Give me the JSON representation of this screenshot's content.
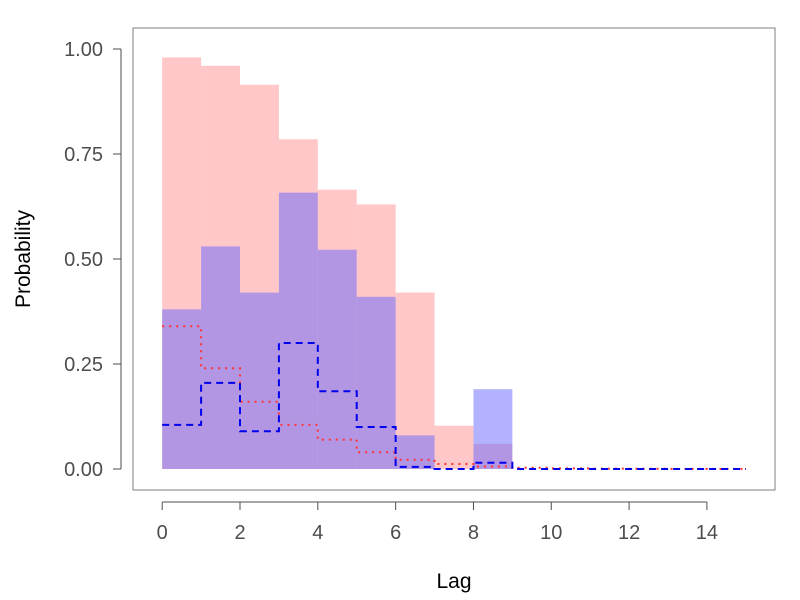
{
  "chart_data": {
    "type": "bar",
    "xlabel": "Lag",
    "ylabel": "Probability",
    "xlim": [
      -0.75,
      15.75
    ],
    "ylim": [
      -0.05,
      1.05
    ],
    "x_ticks": [
      "0",
      "2",
      "4",
      "6",
      "8",
      "10",
      "12",
      "14"
    ],
    "y_ticks": [
      "0.00",
      "0.25",
      "0.50",
      "0.75",
      "1.00"
    ],
    "bins": [
      0,
      1,
      2,
      3,
      4,
      5,
      6,
      7,
      8,
      9,
      10,
      11,
      12,
      13,
      14
    ],
    "series": [
      {
        "style": "filled-bars",
        "color": "#ff9999",
        "opacity": 0.55,
        "values": [
          0.98,
          0.96,
          0.915,
          0.785,
          0.665,
          0.63,
          0.42,
          0.103,
          0.06,
          0,
          0,
          0,
          0,
          0,
          0
        ]
      },
      {
        "style": "filled-bars",
        "color": "#6666ff",
        "opacity": 0.5,
        "values": [
          0.38,
          0.53,
          0.42,
          0.658,
          0.522,
          0.41,
          0.08,
          0.0,
          0.19,
          0,
          0,
          0,
          0,
          0,
          0
        ]
      },
      {
        "style": "dotted-step",
        "color": "#ff3333",
        "values": [
          0.34,
          0.24,
          0.16,
          0.105,
          0.07,
          0.04,
          0.022,
          0.012,
          0.006,
          0.003,
          0.0015,
          0.001,
          0.0005,
          0.0003,
          0.0002
        ]
      },
      {
        "style": "dashed-step",
        "color": "#0000ee",
        "values": [
          0.105,
          0.205,
          0.09,
          0.3,
          0.185,
          0.1,
          0.005,
          0.0,
          0.015,
          0.0,
          0.0,
          0.0,
          0.0,
          0.0,
          0.0
        ]
      }
    ]
  }
}
